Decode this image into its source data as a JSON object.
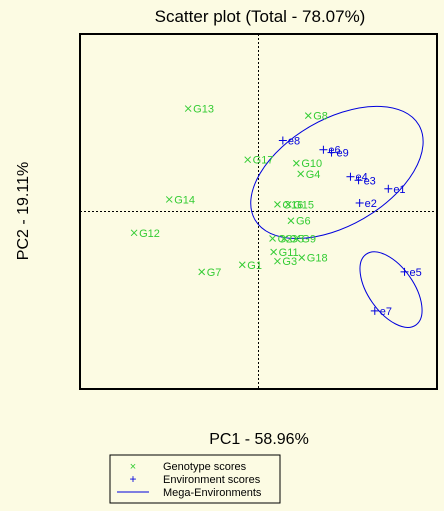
{
  "chart_data": {
    "type": "scatter",
    "title": "Scatter plot (Total - 78.07%)",
    "xlabel": "PC1 - 58.96%",
    "ylabel": "PC2 - 19.11%",
    "xlim": [
      -3.3,
      3.3
    ],
    "ylim": [
      -2.5,
      2.5
    ],
    "grid": false,
    "reference_lines": {
      "x": 0,
      "y": 0
    },
    "colors": {
      "genotype": "#33cc33",
      "environment": "#0000dd",
      "frame": "#000000"
    },
    "series": [
      {
        "name": "Genotype scores",
        "marker": "x",
        "points": [
          {
            "label": "G13",
            "x": -1.3,
            "y": 1.45
          },
          {
            "label": "G8",
            "x": 0.92,
            "y": 1.35
          },
          {
            "label": "G17",
            "x": -0.2,
            "y": 0.73
          },
          {
            "label": "G10",
            "x": 0.7,
            "y": 0.68
          },
          {
            "label": "G4",
            "x": 0.78,
            "y": 0.53
          },
          {
            "label": "G14",
            "x": -1.65,
            "y": 0.17
          },
          {
            "label": "G16",
            "x": 0.35,
            "y": 0.1
          },
          {
            "label": "G15",
            "x": 0.55,
            "y": 0.1
          },
          {
            "label": "G6",
            "x": 0.6,
            "y": -0.13
          },
          {
            "label": "G12",
            "x": -2.3,
            "y": -0.3
          },
          {
            "label": "G2",
            "x": 0.26,
            "y": -0.38
          },
          {
            "label": "G5",
            "x": 0.48,
            "y": -0.38
          },
          {
            "label": "G9",
            "x": 0.7,
            "y": -0.38
          },
          {
            "label": "G11",
            "x": 0.28,
            "y": -0.57
          },
          {
            "label": "G18",
            "x": 0.8,
            "y": -0.65
          },
          {
            "label": "G3",
            "x": 0.35,
            "y": -0.7
          },
          {
            "label": "G1",
            "x": -0.3,
            "y": -0.75
          },
          {
            "label": "G7",
            "x": -1.05,
            "y": -0.85
          }
        ]
      },
      {
        "name": "Environment scores",
        "marker": "+",
        "points": [
          {
            "label": "e8",
            "x": 0.45,
            "y": 1.0
          },
          {
            "label": "e6",
            "x": 1.2,
            "y": 0.87
          },
          {
            "label": "e9",
            "x": 1.35,
            "y": 0.83
          },
          {
            "label": "e4",
            "x": 1.7,
            "y": 0.49
          },
          {
            "label": "e3",
            "x": 1.85,
            "y": 0.44
          },
          {
            "label": "e1",
            "x": 2.4,
            "y": 0.32
          },
          {
            "label": "e2",
            "x": 1.87,
            "y": 0.12
          },
          {
            "label": "e5",
            "x": 2.7,
            "y": -0.85
          },
          {
            "label": "e7",
            "x": 2.15,
            "y": -1.4
          }
        ]
      }
    ],
    "ellipses": [
      {
        "name": "Mega-Environments",
        "cx": 1.45,
        "cy": 0.55,
        "rx": 1.75,
        "ry": 0.75,
        "angle_deg": 30
      },
      {
        "name": "Mega-Environments",
        "cx": 2.45,
        "cy": -1.1,
        "rx": 0.8,
        "ry": 0.32,
        "angle_deg": -55
      }
    ],
    "legend": {
      "position": "bottom-left",
      "entries": [
        {
          "symbol": "×",
          "label": "Genotype scores",
          "color": "#33cc33"
        },
        {
          "symbol": "+",
          "label": "Environment scores",
          "color": "#0000dd"
        },
        {
          "symbol": "line",
          "label": "Mega-Environments",
          "color": "#0000dd"
        }
      ]
    }
  }
}
